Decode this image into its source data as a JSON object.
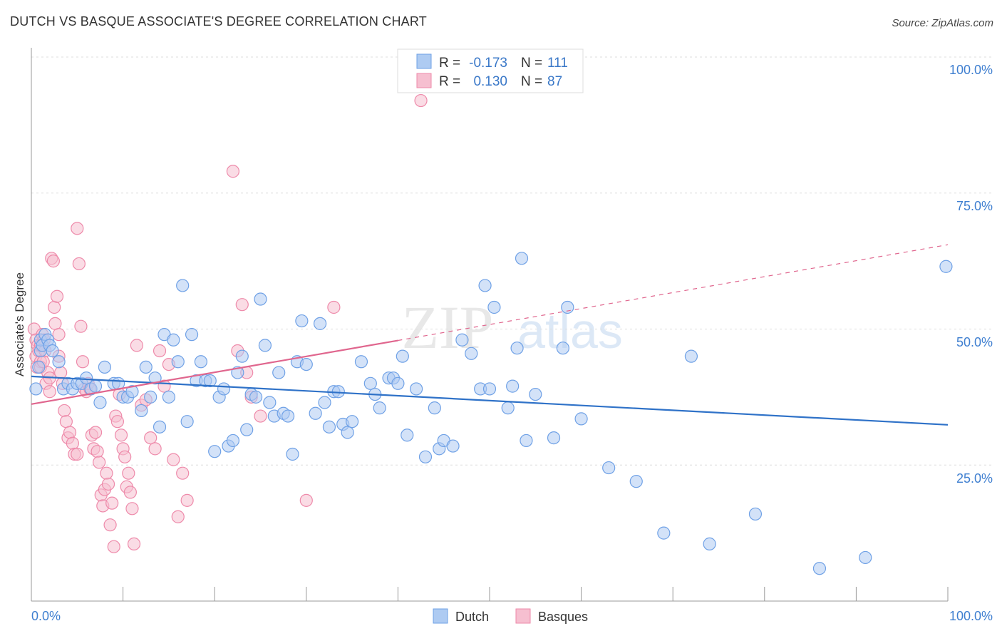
{
  "title": "DUTCH VS BASQUE ASSOCIATE'S DEGREE CORRELATION CHART",
  "source": "Source: ZipAtlas.com",
  "watermark": "ZIPatlas",
  "chart_data": {
    "type": "scatter",
    "ylabel": "Associate's Degree",
    "x_tick_labels": [
      "0.0%",
      "100.0%"
    ],
    "y_tick_labels": [
      "25.0%",
      "50.0%",
      "75.0%",
      "100.0%"
    ],
    "xlim": [
      0,
      100
    ],
    "ylim": [
      0,
      105
    ],
    "grid": true,
    "legend": {
      "position": "top-center",
      "entries": [
        {
          "r_label": "R =",
          "r_value": "-0.173",
          "n_label": "N =",
          "n_value": "111"
        },
        {
          "r_label": "R =",
          "r_value": "0.130",
          "n_label": "N =",
          "n_value": "87"
        }
      ]
    },
    "series": [
      {
        "name": "Dutch",
        "color": "#6fa1e6",
        "fill": "#aecbf2",
        "trend_color": "#2f72c8",
        "trend": {
          "x1": 0,
          "y1": 41.3,
          "x2": 100,
          "y2": 32.4
        },
        "points": [
          [
            0.5,
            39
          ],
          [
            0.8,
            43
          ],
          [
            1,
            46
          ],
          [
            1,
            48
          ],
          [
            1.2,
            47
          ],
          [
            1.5,
            49
          ],
          [
            1.8,
            48
          ],
          [
            2,
            47
          ],
          [
            2.3,
            46
          ],
          [
            3,
            44
          ],
          [
            3.5,
            39
          ],
          [
            4,
            40
          ],
          [
            4.5,
            39
          ],
          [
            5,
            40
          ],
          [
            5.5,
            40
          ],
          [
            6,
            41
          ],
          [
            6.5,
            39
          ],
          [
            7,
            39.5
          ],
          [
            7.5,
            36.5
          ],
          [
            8,
            43
          ],
          [
            9,
            40
          ],
          [
            9.5,
            40
          ],
          [
            10,
            37.5
          ],
          [
            10.5,
            37.5
          ],
          [
            11,
            38.5
          ],
          [
            12,
            35
          ],
          [
            12.5,
            43
          ],
          [
            13,
            37.5
          ],
          [
            13.5,
            41
          ],
          [
            14,
            32
          ],
          [
            14.5,
            49
          ],
          [
            15,
            37.5
          ],
          [
            15.5,
            48
          ],
          [
            16,
            44
          ],
          [
            16.5,
            58
          ],
          [
            17,
            33
          ],
          [
            17.5,
            49
          ],
          [
            18,
            40.5
          ],
          [
            18.5,
            44
          ],
          [
            19,
            40.5
          ],
          [
            19.5,
            40.5
          ],
          [
            20,
            27.5
          ],
          [
            20.5,
            37.5
          ],
          [
            21,
            39
          ],
          [
            21.5,
            28.5
          ],
          [
            22,
            29.5
          ],
          [
            22.5,
            42
          ],
          [
            23,
            45
          ],
          [
            23.5,
            31.5
          ],
          [
            24,
            38
          ],
          [
            24.5,
            37.5
          ],
          [
            25,
            55.5
          ],
          [
            25.5,
            47
          ],
          [
            26,
            36.5
          ],
          [
            26.5,
            34
          ],
          [
            27,
            42
          ],
          [
            27.5,
            34.5
          ],
          [
            28,
            34
          ],
          [
            28.5,
            27
          ],
          [
            29,
            44
          ],
          [
            29.5,
            51.5
          ],
          [
            30,
            43.5
          ],
          [
            31,
            34.5
          ],
          [
            31.5,
            51
          ],
          [
            32,
            36.5
          ],
          [
            32.5,
            32
          ],
          [
            33,
            38.5
          ],
          [
            33.5,
            38.5
          ],
          [
            34,
            32.5
          ],
          [
            34.5,
            31
          ],
          [
            35,
            33
          ],
          [
            36,
            44
          ],
          [
            37,
            40
          ],
          [
            37.5,
            38
          ],
          [
            38,
            35.5
          ],
          [
            39,
            41
          ],
          [
            39.5,
            41
          ],
          [
            40,
            40
          ],
          [
            40.5,
            45
          ],
          [
            41,
            30.5
          ],
          [
            42,
            39
          ],
          [
            43,
            26.5
          ],
          [
            44,
            35.5
          ],
          [
            44.5,
            28
          ],
          [
            45,
            29.5
          ],
          [
            46,
            28.5
          ],
          [
            47,
            48
          ],
          [
            48,
            45.5
          ],
          [
            49,
            39
          ],
          [
            49.5,
            58
          ],
          [
            50,
            39
          ],
          [
            50.5,
            54
          ],
          [
            52,
            35.5
          ],
          [
            52.5,
            39.5
          ],
          [
            53,
            46.5
          ],
          [
            53.5,
            63
          ],
          [
            54,
            29.5
          ],
          [
            55,
            38
          ],
          [
            57,
            30
          ],
          [
            58,
            46.5
          ],
          [
            58.5,
            54
          ],
          [
            60,
            33.5
          ],
          [
            63,
            24.5
          ],
          [
            66,
            22
          ],
          [
            69,
            12.5
          ],
          [
            72,
            45
          ],
          [
            74,
            10.5
          ],
          [
            79,
            16
          ],
          [
            86,
            6
          ],
          [
            91,
            8
          ],
          [
            99.8,
            61.5
          ]
        ]
      },
      {
        "name": "Basques",
        "color": "#ee8aaa",
        "fill": "#f6bfd0",
        "trend_color": "#e0668e",
        "trend": {
          "x1": 0,
          "y1": 36.2,
          "x2": 40,
          "y2": 47.9
        },
        "trend_dashed": {
          "x1": 40,
          "y1": 47.9,
          "x2": 100,
          "y2": 65.5
        },
        "points": [
          [
            0.3,
            50
          ],
          [
            0.5,
            48
          ],
          [
            0.5,
            45
          ],
          [
            0.6,
            43
          ],
          [
            0.7,
            47
          ],
          [
            0.8,
            46
          ],
          [
            1,
            44
          ],
          [
            1,
            43
          ],
          [
            1,
            47
          ],
          [
            1.2,
            49
          ],
          [
            1.3,
            44
          ],
          [
            1.4,
            48
          ],
          [
            1.5,
            46
          ],
          [
            1.6,
            40
          ],
          [
            1.8,
            42
          ],
          [
            2,
            41
          ],
          [
            2,
            38.5
          ],
          [
            2.2,
            63
          ],
          [
            2.4,
            62.5
          ],
          [
            2.5,
            54
          ],
          [
            2.6,
            51
          ],
          [
            2.8,
            56
          ],
          [
            3,
            49
          ],
          [
            3,
            45
          ],
          [
            3.2,
            42
          ],
          [
            3.4,
            40
          ],
          [
            3.6,
            35
          ],
          [
            3.8,
            33
          ],
          [
            4,
            30
          ],
          [
            4.2,
            31
          ],
          [
            4.5,
            29
          ],
          [
            4.7,
            27
          ],
          [
            5,
            27
          ],
          [
            5,
            68.5
          ],
          [
            5.2,
            62
          ],
          [
            5.4,
            50.5
          ],
          [
            5.6,
            44
          ],
          [
            5.8,
            39
          ],
          [
            6,
            38.5
          ],
          [
            6.2,
            40
          ],
          [
            6.4,
            39
          ],
          [
            6.6,
            30.5
          ],
          [
            6.8,
            28
          ],
          [
            7,
            31
          ],
          [
            7.2,
            27.5
          ],
          [
            7.4,
            25.5
          ],
          [
            7.6,
            19.5
          ],
          [
            7.8,
            17.5
          ],
          [
            8,
            20.5
          ],
          [
            8.2,
            23.5
          ],
          [
            8.4,
            21.5
          ],
          [
            8.6,
            14
          ],
          [
            8.8,
            18
          ],
          [
            9,
            10
          ],
          [
            9.2,
            34
          ],
          [
            9.4,
            33
          ],
          [
            9.6,
            38
          ],
          [
            9.8,
            30.5
          ],
          [
            10,
            28
          ],
          [
            10.2,
            26.5
          ],
          [
            10.4,
            21
          ],
          [
            10.6,
            23.5
          ],
          [
            10.8,
            20
          ],
          [
            11,
            17
          ],
          [
            11.2,
            10.5
          ],
          [
            11.5,
            47
          ],
          [
            12,
            36
          ],
          [
            12.5,
            37
          ],
          [
            13,
            30
          ],
          [
            13.5,
            28
          ],
          [
            14,
            46
          ],
          [
            14.5,
            39.5
          ],
          [
            15,
            43.5
          ],
          [
            15.5,
            26
          ],
          [
            16,
            15.5
          ],
          [
            16.5,
            23.5
          ],
          [
            17,
            18.5
          ],
          [
            22,
            79
          ],
          [
            22.5,
            46
          ],
          [
            23,
            54.5
          ],
          [
            23.5,
            42
          ],
          [
            24,
            37.5
          ],
          [
            25,
            34
          ],
          [
            30,
            18.5
          ],
          [
            33,
            54
          ],
          [
            42.5,
            92
          ]
        ]
      }
    ]
  }
}
